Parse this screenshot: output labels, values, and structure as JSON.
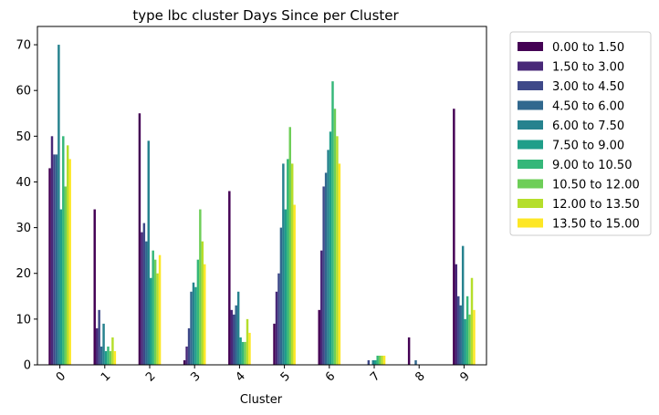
{
  "chart_data": {
    "type": "bar",
    "title": "type lbc cluster Days Since per Cluster",
    "xlabel": "Cluster",
    "ylabel": "",
    "ylim": [
      0,
      74
    ],
    "yticks": [
      0,
      10,
      20,
      30,
      40,
      50,
      60,
      70
    ],
    "grid": false,
    "legend_position": "outside-right",
    "categories": [
      "0",
      "1",
      "2",
      "3",
      "4",
      "5",
      "6",
      "7",
      "8",
      "9"
    ],
    "series": [
      {
        "name": "0.00 to 1.50",
        "color": "#440154",
        "values": [
          43,
          34,
          55,
          1,
          38,
          9,
          12,
          0,
          6,
          56
        ]
      },
      {
        "name": "1.50 to 3.00",
        "color": "#482878",
        "values": [
          50,
          8,
          29,
          4,
          12,
          16,
          25,
          0,
          0,
          22
        ]
      },
      {
        "name": "3.00 to 4.50",
        "color": "#3e4989",
        "values": [
          46,
          12,
          31,
          8,
          11,
          20,
          39,
          1,
          0,
          15
        ]
      },
      {
        "name": "4.50 to 6.00",
        "color": "#31688e",
        "values": [
          46,
          4,
          27,
          16,
          13,
          30,
          42,
          0,
          1,
          13
        ]
      },
      {
        "name": "6.00 to 7.50",
        "color": "#26828e",
        "values": [
          70,
          9,
          49,
          18,
          16,
          44,
          47,
          1,
          0,
          26
        ]
      },
      {
        "name": "7.50 to 9.00",
        "color": "#1f9e89",
        "values": [
          34,
          3,
          19,
          17,
          6,
          34,
          51,
          1,
          0,
          10
        ]
      },
      {
        "name": "9.00 to 10.50",
        "color": "#35b779",
        "values": [
          50,
          4,
          25,
          23,
          5,
          45,
          62,
          2,
          0,
          15
        ]
      },
      {
        "name": "10.50 to 12.00",
        "color": "#6ece58",
        "values": [
          39,
          3,
          23,
          34,
          5,
          52,
          56,
          2,
          0,
          11
        ]
      },
      {
        "name": "12.00 to 13.50",
        "color": "#b5de2b",
        "values": [
          48,
          6,
          20,
          27,
          10,
          44,
          50,
          2,
          0,
          19
        ]
      },
      {
        "name": "13.50 to 15.00",
        "color": "#fde725",
        "values": [
          45,
          3,
          24,
          22,
          7,
          35,
          44,
          2,
          0,
          12
        ]
      }
    ]
  }
}
